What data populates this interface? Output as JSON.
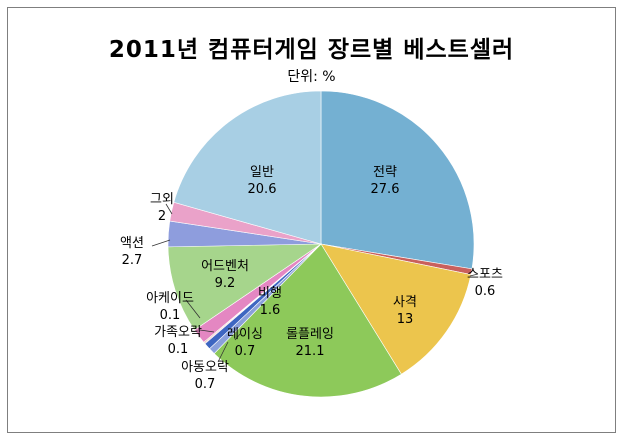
{
  "title": "2011년 컴퓨터게임 장르별 베스트셀러",
  "unit_label": "단위: %",
  "chart_data": {
    "type": "pie",
    "title": "2011년 컴퓨터게임 장르별 베스트셀러",
    "subtitle": "단위: %",
    "start_angle_deg": 0,
    "direction": "clockwise",
    "slices": [
      {
        "label": "전략",
        "value": 27.6,
        "color": "#74b0d2"
      },
      {
        "label": "스포츠",
        "value": 0.6,
        "color": "#c9605c"
      },
      {
        "label": "사격",
        "value": 13,
        "color": "#ecc54d"
      },
      {
        "label": "롤플레잉",
        "value": 21.1,
        "color": "#8dc95a"
      },
      {
        "label": "아동오락",
        "value": 0.7,
        "color": "#8aa0db"
      },
      {
        "label": "레이싱",
        "value": 0.7,
        "color": "#3e66c1"
      },
      {
        "label": "가족오락",
        "value": 0.1,
        "color": "#ef8dbd"
      },
      {
        "label": "아케이드",
        "value": 0.1,
        "color": "#c99a50"
      },
      {
        "label": "비행",
        "value": 1.6,
        "color": "#e487c2"
      },
      {
        "label": "어드벤처",
        "value": 9.2,
        "color": "#a6d58c"
      },
      {
        "label": "액션",
        "value": 2.7,
        "color": "#8e9ddd"
      },
      {
        "label": "그외",
        "value": 2,
        "color": "#eaa2c9"
      },
      {
        "label": "일반",
        "value": 20.6,
        "color": "#a8cfe4"
      }
    ]
  }
}
